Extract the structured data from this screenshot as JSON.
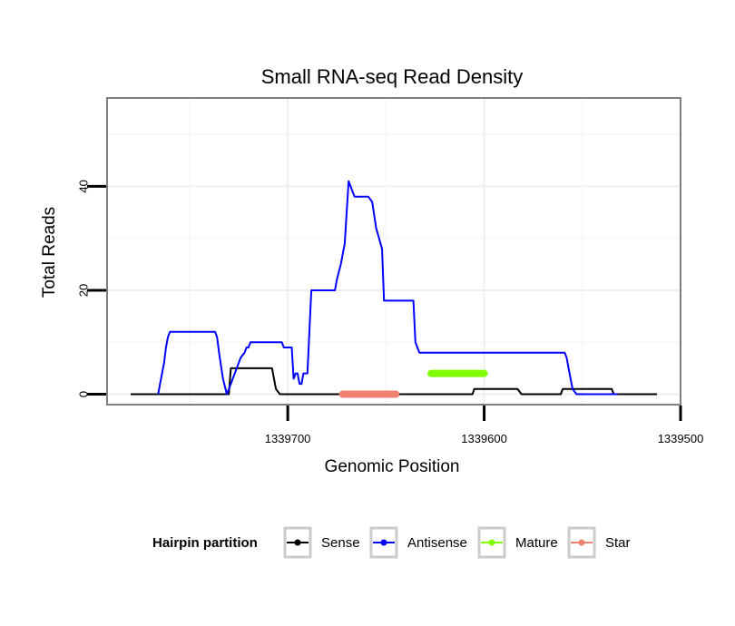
{
  "chart_data": {
    "type": "line",
    "title": "Small RNA-seq Read Density",
    "xlabel": "Genomic Position",
    "ylabel": "Total Reads",
    "x_reversed": true,
    "xlim": [
      1339792,
      1339500
    ],
    "ylim": [
      -2,
      57
    ],
    "x_ticks": [
      1339700,
      1339600,
      1339500
    ],
    "x_tick_labels": [
      "1339700",
      "1339600",
      "1339500"
    ],
    "y_ticks": [
      0,
      20,
      40
    ],
    "y_tick_labels": [
      "0",
      "20",
      "40"
    ],
    "grid": true,
    "legend": {
      "title": "Hairpin partition",
      "position": "bottom",
      "entries": [
        "Sense",
        "Antisense",
        "Mature",
        "Star"
      ]
    },
    "series": [
      {
        "name": "Sense",
        "color": "#000000",
        "x": [
          1339780,
          1339730,
          1339729,
          1339708,
          1339706,
          1339704,
          1339606,
          1339605,
          1339583,
          1339581,
          1339561,
          1339560,
          1339535,
          1339534,
          1339512
        ],
        "y": [
          0,
          0,
          5,
          5,
          1,
          0,
          0,
          1,
          1,
          0,
          0,
          1,
          1,
          0,
          0
        ]
      },
      {
        "name": "Antisense",
        "color": "#0000ff",
        "x": [
          1339766,
          1339765,
          1339764,
          1339763,
          1339762,
          1339761,
          1339760,
          1339758,
          1339737,
          1339736,
          1339735,
          1339733,
          1339731,
          1339729,
          1339727,
          1339725,
          1339724,
          1339722,
          1339721,
          1339720,
          1339719,
          1339703,
          1339702,
          1339701,
          1339700,
          1339698,
          1339697,
          1339696,
          1339695,
          1339694,
          1339693,
          1339692,
          1339691,
          1339690,
          1339688,
          1339688,
          1339676,
          1339675,
          1339673,
          1339671,
          1339669,
          1339668,
          1339667,
          1339666,
          1339665,
          1339663,
          1339662,
          1339661,
          1339659,
          1339657,
          1339655,
          1339652,
          1339651,
          1339650,
          1339648,
          1339636,
          1339635,
          1339634,
          1339633,
          1339632,
          1339560,
          1339559,
          1339558,
          1339557,
          1339556,
          1339555,
          1339553,
          1339552,
          1339534,
          1339533,
          1339532
        ],
        "y": [
          0,
          2,
          4,
          6,
          9,
          11,
          12,
          12,
          12,
          11,
          8,
          3,
          0,
          2,
          4,
          6,
          7,
          8,
          9,
          9,
          10,
          10,
          9,
          9,
          9,
          9,
          3,
          4,
          4,
          2,
          2,
          4,
          4,
          4,
          20,
          20,
          20,
          22,
          25,
          29,
          41,
          40,
          39,
          38,
          38,
          38,
          38,
          38,
          38,
          37,
          32,
          28,
          18,
          18,
          18,
          18,
          10,
          9,
          8,
          8,
          8,
          8,
          7,
          5,
          3,
          1,
          0,
          0,
          0,
          0,
          0
        ]
      },
      {
        "name": "Mature",
        "color": "#80ff00",
        "x": [
          1339627,
          1339600
        ],
        "y": [
          4,
          4
        ]
      },
      {
        "name": "Star",
        "color": "#f08070",
        "x": [
          1339672,
          1339645
        ],
        "y": [
          0,
          0
        ]
      }
    ]
  }
}
